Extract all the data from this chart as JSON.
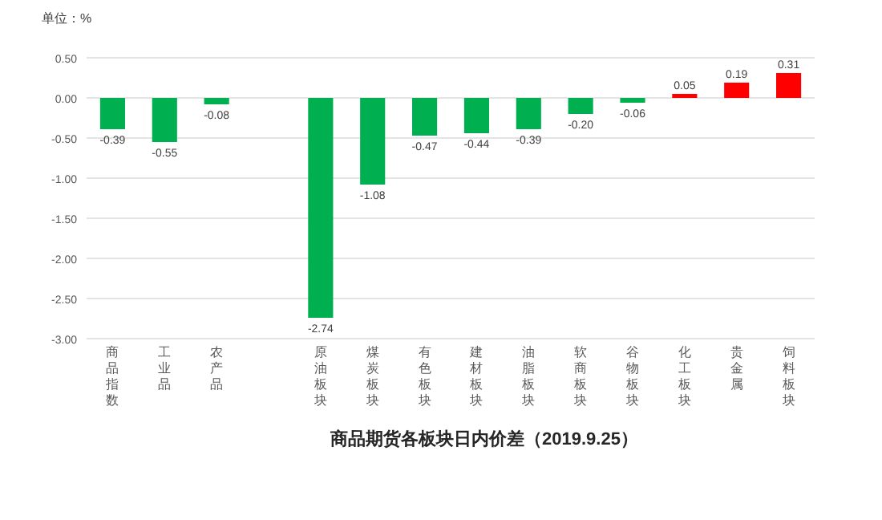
{
  "chart_data": {
    "type": "bar",
    "title": "商品期货各板块日内价差（2019.9.25）",
    "ylabel": "单位：%",
    "categories": [
      "商品指数",
      "工业品",
      "农产品",
      null,
      "原油板块",
      "煤炭板块",
      "有色板块",
      "建材板块",
      "油脂板块",
      "软商板块",
      "谷物板块",
      "化工板块",
      "贵金属",
      "饲料板块"
    ],
    "values": [
      -0.39,
      -0.55,
      -0.08,
      null,
      -2.74,
      -1.08,
      -0.47,
      -0.44,
      -0.39,
      -0.2,
      -0.06,
      0.05,
      0.19,
      0.31
    ],
    "colors": [
      "#00b050",
      "#00b050",
      "#00b050",
      null,
      "#00b050",
      "#00b050",
      "#00b050",
      "#00b050",
      "#00b050",
      "#00b050",
      "#00b050",
      "#ff0000",
      "#ff0000",
      "#ff0000"
    ],
    "value_labels": [
      "-0.39",
      "-0.55",
      "-0.08",
      null,
      "-2.74",
      "-1.08",
      "-0.47",
      "-0.44",
      "-0.39",
      "-0.20",
      "-0.06",
      "0.05",
      "0.19",
      "0.31"
    ],
    "ylim": [
      -3.0,
      0.5
    ],
    "yticks": [
      {
        "value": 0.5,
        "label": "0.50"
      },
      {
        "value": 0,
        "label": "0.00"
      },
      {
        "value": -0.5,
        "label": "-0.50"
      },
      {
        "value": -1,
        "label": "-1.00"
      },
      {
        "value": -1.5,
        "label": "-1.50"
      },
      {
        "value": -2,
        "label": "-2.00"
      },
      {
        "value": -2.5,
        "label": "-2.50"
      },
      {
        "value": -3,
        "label": "-3.00"
      }
    ],
    "grid": "y"
  }
}
